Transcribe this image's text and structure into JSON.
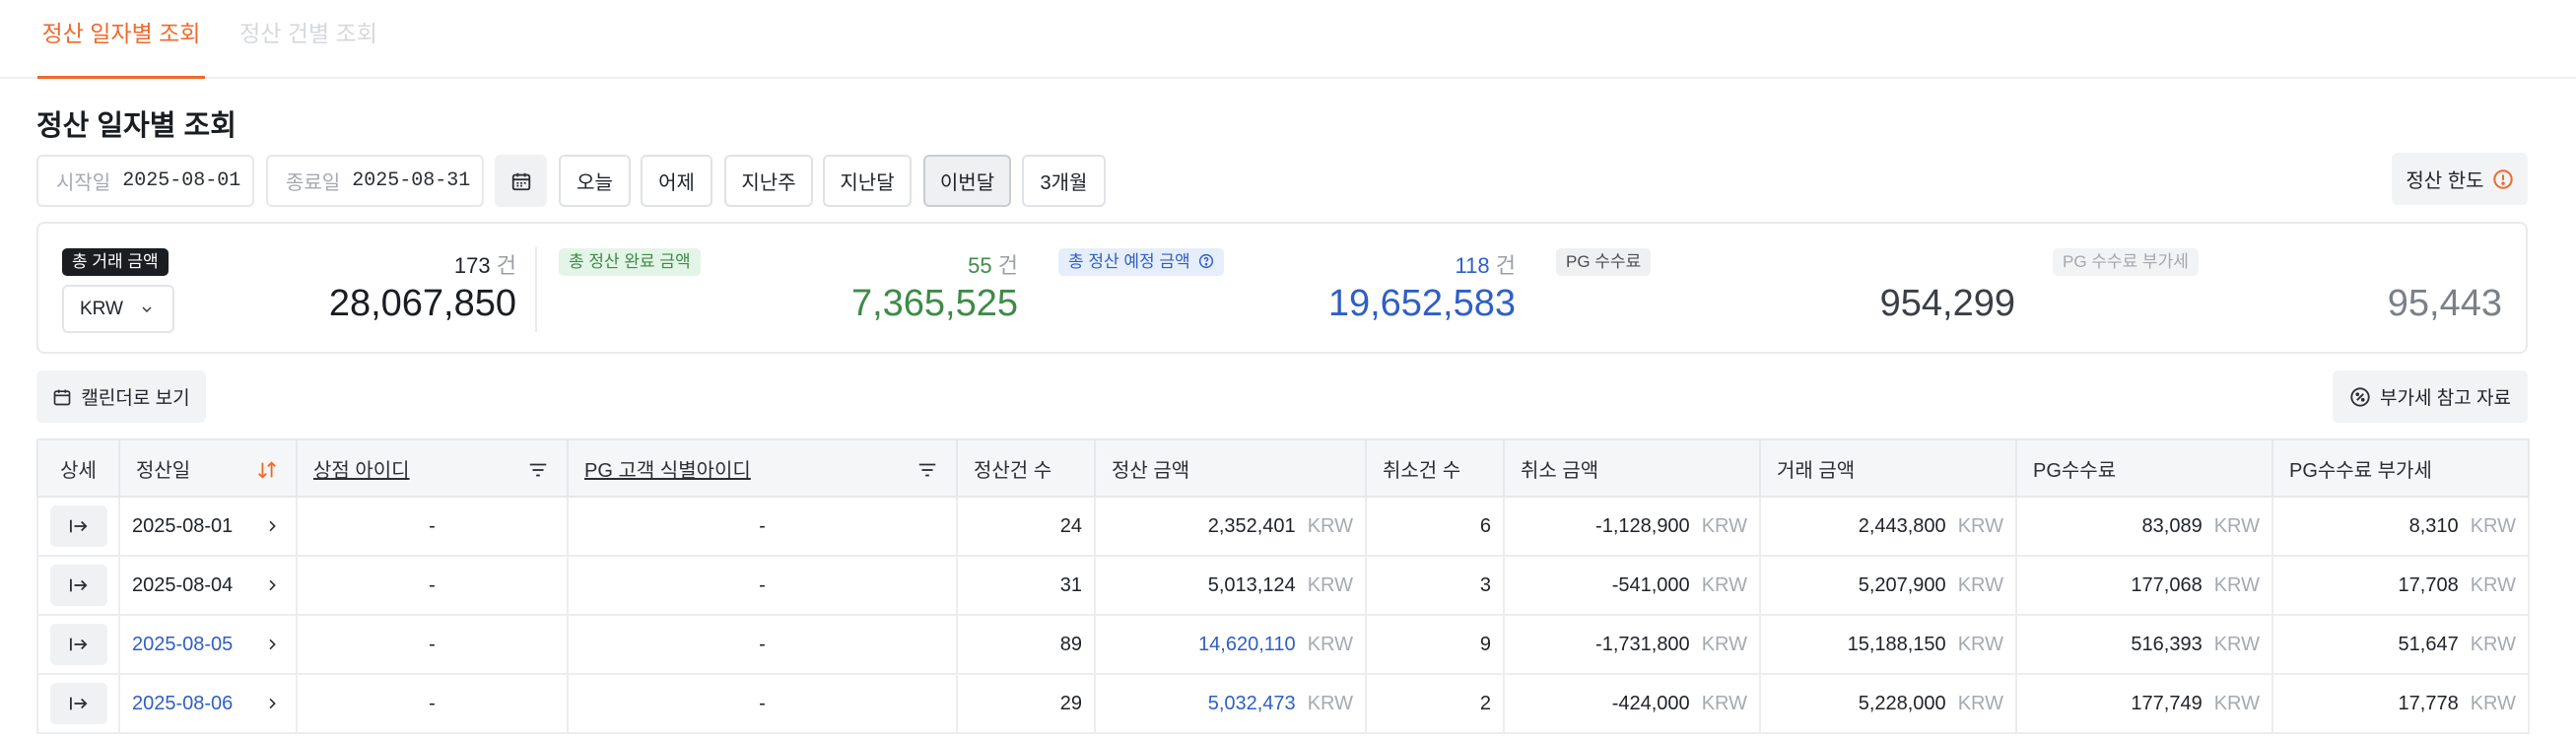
{
  "tabs": [
    {
      "label": "정산 일자별 조회",
      "active": true
    },
    {
      "label": "정산 건별 조회",
      "active": false
    }
  ],
  "page_title": "정산 일자별 조회",
  "filters": {
    "start": {
      "label": "시작일",
      "value": "2025-08-01"
    },
    "end": {
      "label": "종료일",
      "value": "2025-08-31"
    },
    "quick": [
      "오늘",
      "어제",
      "지난주",
      "지난달",
      "이번달",
      "3개월"
    ],
    "selected_quick": "이번달",
    "limit_label": "정산 한도"
  },
  "summary": {
    "total": {
      "label": "총 거래 금액",
      "count": "173",
      "unit": "건",
      "amount": "28,067,850",
      "currency": "KRW"
    },
    "completed": {
      "label": "총 정산 완료 금액",
      "count": "55",
      "unit": "건",
      "amount": "7,365,525"
    },
    "scheduled": {
      "label": "총 정산 예정 금액",
      "count": "118",
      "unit": "건",
      "amount": "19,652,583"
    },
    "pg_fee": {
      "label": "PG 수수료",
      "amount": "954,299"
    },
    "pg_vat": {
      "label": "PG 수수료 부가세",
      "amount": "95,443"
    }
  },
  "actions": {
    "calendar_view": "캘린더로 보기",
    "vat_reference": "부가세 참고 자료"
  },
  "table": {
    "headers": [
      "상세",
      "정산일",
      "상점 아이디",
      "PG 고객 식별아이디",
      "정산건 수",
      "정산 금액",
      "취소건 수",
      "취소 금액",
      "거래 금액",
      "PG수수료",
      "PG수수료 부가세"
    ],
    "currency": "KRW",
    "rows": [
      {
        "date": "2025-08-01",
        "shop": "-",
        "pg_id": "-",
        "count": "24",
        "amount": "2,352,401",
        "cancel_count": "6",
        "cancel_amount": "-1,128,900",
        "trade": "2,443,800",
        "fee": "83,089",
        "vat": "8,310",
        "highlight": false
      },
      {
        "date": "2025-08-04",
        "shop": "-",
        "pg_id": "-",
        "count": "31",
        "amount": "5,013,124",
        "cancel_count": "3",
        "cancel_amount": "-541,000",
        "trade": "5,207,900",
        "fee": "177,068",
        "vat": "17,708",
        "highlight": false
      },
      {
        "date": "2025-08-05",
        "shop": "-",
        "pg_id": "-",
        "count": "89",
        "amount": "14,620,110",
        "cancel_count": "9",
        "cancel_amount": "-1,731,800",
        "trade": "15,188,150",
        "fee": "516,393",
        "vat": "51,647",
        "highlight": true
      },
      {
        "date": "2025-08-06",
        "shop": "-",
        "pg_id": "-",
        "count": "29",
        "amount": "5,032,473",
        "cancel_count": "2",
        "cancel_amount": "-424,000",
        "trade": "5,228,000",
        "fee": "177,749",
        "vat": "17,778",
        "highlight": true
      }
    ]
  },
  "colors": {
    "accent": "#ee6a2b",
    "green": "#3e8a48",
    "blue": "#2f5fc4"
  }
}
